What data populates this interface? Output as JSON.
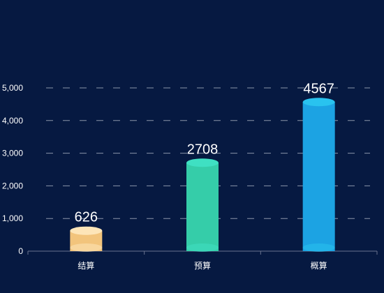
{
  "chart_data": {
    "type": "bar",
    "title": "",
    "xlabel": "",
    "ylabel": "",
    "categories": [
      "结算",
      "预算",
      "概算"
    ],
    "values": [
      626,
      2708,
      4567
    ],
    "data_labels": [
      "626",
      "2708",
      "4567"
    ],
    "colors": [
      "#f2c47c",
      "#35cda9",
      "#1ca3e3"
    ],
    "cap_colors": [
      "#fde5b8",
      "#3fe0c2",
      "#29c3ef"
    ],
    "ylim": [
      0,
      5000
    ],
    "yticks": [
      0,
      1000,
      2000,
      3000,
      4000,
      5000
    ],
    "ytick_labels": [
      "0",
      "1,000",
      "2,000",
      "3,000",
      "4,000",
      "5,000"
    ],
    "grid": true,
    "background": "#061941",
    "text_color": "#ffffff",
    "grid_color": "#9aa3b5",
    "axis_color": "#6b7490"
  }
}
